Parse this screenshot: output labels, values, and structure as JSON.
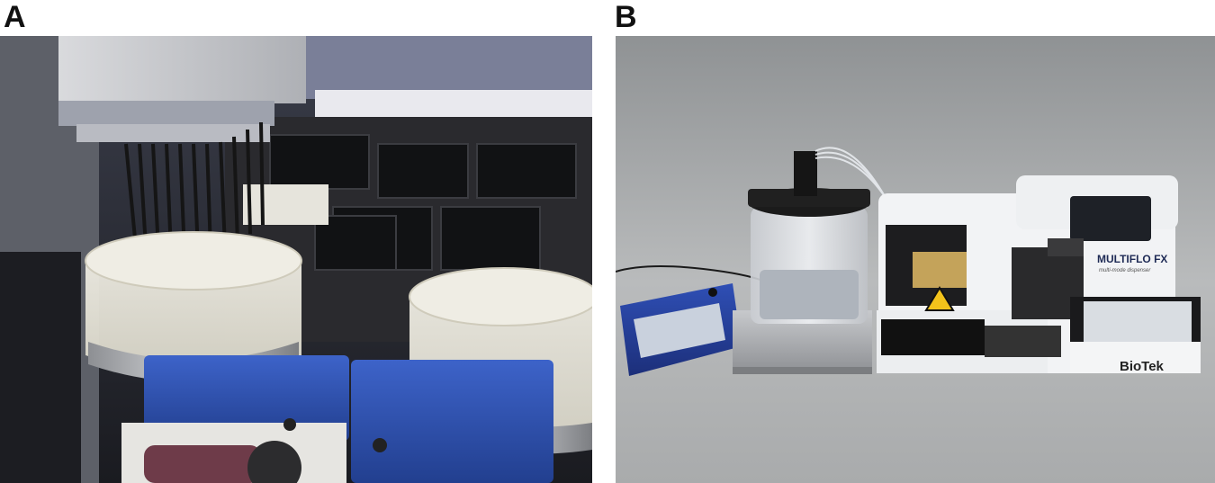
{
  "figure": {
    "panels": [
      {
        "id": "A",
        "label": "A"
      },
      {
        "id": "B",
        "label": "B"
      }
    ],
    "panel_b_device": {
      "brand_logo": "MULTIFLO FX",
      "brand_subtitle": "multi-mode dispenser",
      "maker_logo": "BioTek"
    }
  }
}
